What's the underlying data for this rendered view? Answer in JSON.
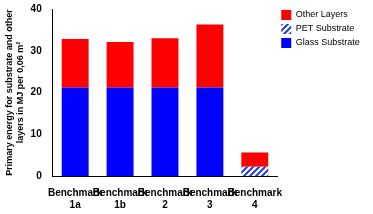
{
  "chart_data": {
    "type": "bar",
    "ylabel": [
      "Primary energy for substrate and other",
      "layers in MJ per 0,06 m²"
    ],
    "categories": [
      "Benchmark 1a",
      "Benchmark 1b",
      "Benchmark 2",
      "Benchmark 3",
      "Benchmark 4"
    ],
    "series": [
      {
        "name": "Glass Substrate",
        "color": "#0000FF",
        "values": [
          21.2,
          21.2,
          21.2,
          21.2,
          0
        ]
      },
      {
        "name": "PET Substrate",
        "color": "#1F3FD0",
        "values": [
          0,
          0,
          0,
          0,
          2.2
        ]
      },
      {
        "name": "Other Layers",
        "color": "#FF0000",
        "values": [
          11.6,
          10.9,
          11.8,
          15.1,
          3.4
        ]
      }
    ],
    "stacked": true,
    "ylim": [
      0,
      40
    ],
    "yticks": [
      0,
      10,
      20,
      30,
      40
    ],
    "grid": false,
    "legend": "right"
  }
}
